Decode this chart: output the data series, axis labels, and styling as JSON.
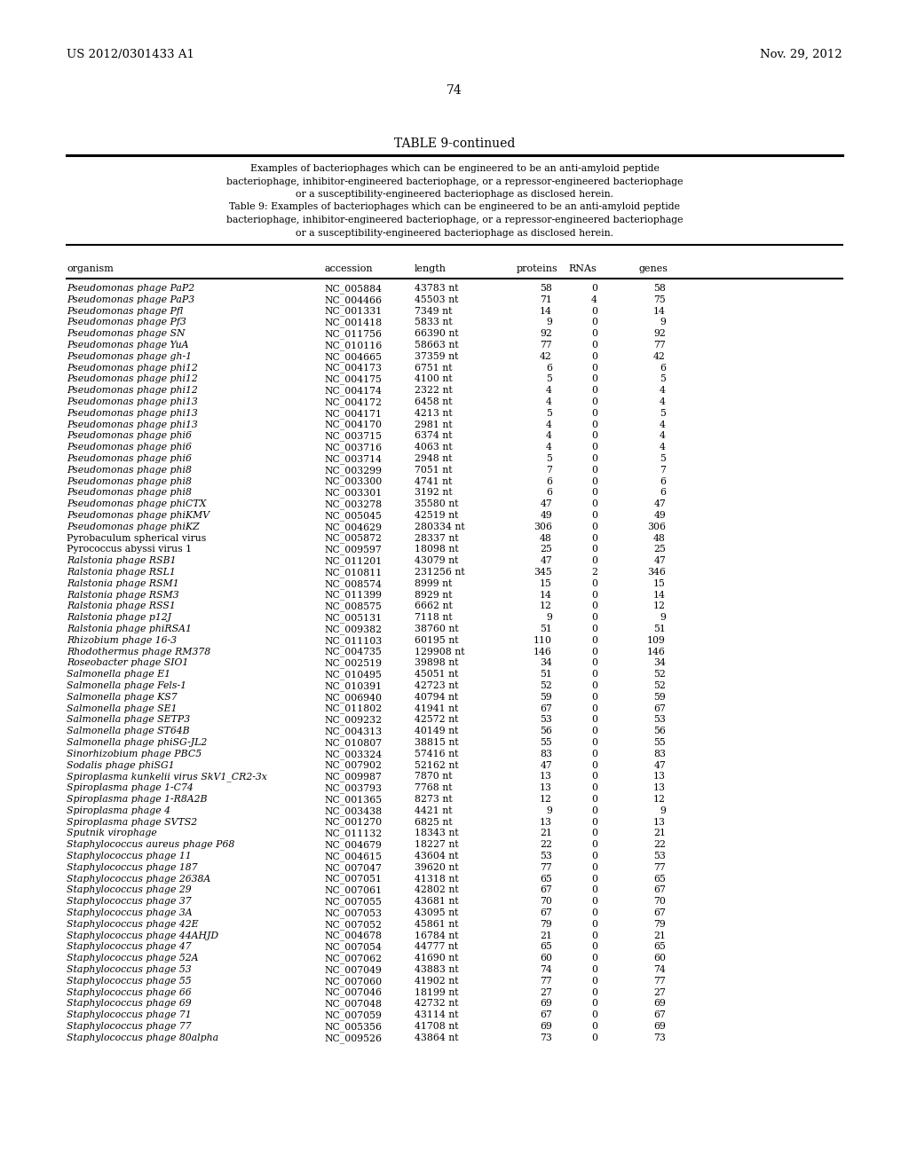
{
  "header_left": "US 2012/0301433 A1",
  "header_right": "Nov. 29, 2012",
  "page_number": "74",
  "table_title": "TABLE 9-continued",
  "caption_lines": [
    "Examples of bacteriophages which can be engineered to be an anti-amyloid peptide",
    "bacteriophage, inhibitor-engineered bacteriophage, or a repressor-engineered bacteriophage",
    "or a susceptibility-engineered bacteriophage as disclosed herein.",
    "Table 9: Examples of bacteriophages which can be engineered to be an anti-amyloid peptide",
    "bacteriophage, inhibitor-engineered bacteriophage, or a repressor-engineered bacteriophage",
    "or a susceptibility-engineered bacteriophage as disclosed herein."
  ],
  "col_headers": [
    "organism",
    "accession",
    "length",
    "proteins",
    "RNAs",
    "genes"
  ],
  "rows": [
    [
      "Pseudomonas phage PaP2",
      "NC_005884",
      "43783 nt",
      "58",
      "0",
      "58"
    ],
    [
      "Pseudomonas phage PaP3",
      "NC_004466",
      "45503 nt",
      "71",
      "4",
      "75"
    ],
    [
      "Pseudomonas phage Pfl",
      "NC_001331",
      "7349 nt",
      "14",
      "0",
      "14"
    ],
    [
      "Pseudomonas phage Pf3",
      "NC_001418",
      "5833 nt",
      "9",
      "0",
      "9"
    ],
    [
      "Pseudomonas phage SN",
      "NC_011756",
      "66390 nt",
      "92",
      "0",
      "92"
    ],
    [
      "Pseudomonas phage YuA",
      "NC_010116",
      "58663 nt",
      "77",
      "0",
      "77"
    ],
    [
      "Pseudomonas phage gh-1",
      "NC_004665",
      "37359 nt",
      "42",
      "0",
      "42"
    ],
    [
      "Pseudomonas phage phi12",
      "NC_004173",
      "6751 nt",
      "6",
      "0",
      "6"
    ],
    [
      "Pseudomonas phage phi12",
      "NC_004175",
      "4100 nt",
      "5",
      "0",
      "5"
    ],
    [
      "Pseudomonas phage phi12",
      "NC_004174",
      "2322 nt",
      "4",
      "0",
      "4"
    ],
    [
      "Pseudomonas phage phi13",
      "NC_004172",
      "6458 nt",
      "4",
      "0",
      "4"
    ],
    [
      "Pseudomonas phage phi13",
      "NC_004171",
      "4213 nt",
      "5",
      "0",
      "5"
    ],
    [
      "Pseudomonas phage phi13",
      "NC_004170",
      "2981 nt",
      "4",
      "0",
      "4"
    ],
    [
      "Pseudomonas phage phi6",
      "NC_003715",
      "6374 nt",
      "4",
      "0",
      "4"
    ],
    [
      "Pseudomonas phage phi6",
      "NC_003716",
      "4063 nt",
      "4",
      "0",
      "4"
    ],
    [
      "Pseudomonas phage phi6",
      "NC_003714",
      "2948 nt",
      "5",
      "0",
      "5"
    ],
    [
      "Pseudomonas phage phi8",
      "NC_003299",
      "7051 nt",
      "7",
      "0",
      "7"
    ],
    [
      "Pseudomonas phage phi8",
      "NC_003300",
      "4741 nt",
      "6",
      "0",
      "6"
    ],
    [
      "Pseudomonas phage phi8",
      "NC_003301",
      "3192 nt",
      "6",
      "0",
      "6"
    ],
    [
      "Pseudomonas phage phiCTX",
      "NC_003278",
      "35580 nt",
      "47",
      "0",
      "47"
    ],
    [
      "Pseudomonas phage phiKMV",
      "NC_005045",
      "42519 nt",
      "49",
      "0",
      "49"
    ],
    [
      "Pseudomonas phage phiKZ",
      "NC_004629",
      "280334 nt",
      "306",
      "0",
      "306"
    ],
    [
      "Pyrobaculum spherical virus",
      "NC_005872",
      "28337 nt",
      "48",
      "0",
      "48"
    ],
    [
      "Pyrococcus abyssi virus 1",
      "NC_009597",
      "18098 nt",
      "25",
      "0",
      "25"
    ],
    [
      "Ralstonia phage RSB1",
      "NC_011201",
      "43079 nt",
      "47",
      "0",
      "47"
    ],
    [
      "Ralstonia phage RSL1",
      "NC_010811",
      "231256 nt",
      "345",
      "2",
      "346"
    ],
    [
      "Ralstonia phage RSM1",
      "NC_008574",
      "8999 nt",
      "15",
      "0",
      "15"
    ],
    [
      "Ralstonia phage RSM3",
      "NC_011399",
      "8929 nt",
      "14",
      "0",
      "14"
    ],
    [
      "Ralstonia phage RSS1",
      "NC_008575",
      "6662 nt",
      "12",
      "0",
      "12"
    ],
    [
      "Ralstonia phage p12J",
      "NC_005131",
      "7118 nt",
      "9",
      "0",
      "9"
    ],
    [
      "Ralstonia phage phiRSA1",
      "NC_009382",
      "38760 nt",
      "51",
      "0",
      "51"
    ],
    [
      "Rhizobium phage 16-3",
      "NC_011103",
      "60195 nt",
      "110",
      "0",
      "109"
    ],
    [
      "Rhodothermus phage RM378",
      "NC_004735",
      "129908 nt",
      "146",
      "0",
      "146"
    ],
    [
      "Roseobacter phage SIO1",
      "NC_002519",
      "39898 nt",
      "34",
      "0",
      "34"
    ],
    [
      "Salmonella phage E1",
      "NC_010495",
      "45051 nt",
      "51",
      "0",
      "52"
    ],
    [
      "Salmonella phage Fels-1",
      "NC_010391",
      "42723 nt",
      "52",
      "0",
      "52"
    ],
    [
      "Salmonella phage KS7",
      "NC_006940",
      "40794 nt",
      "59",
      "0",
      "59"
    ],
    [
      "Salmonella phage SE1",
      "NC_011802",
      "41941 nt",
      "67",
      "0",
      "67"
    ],
    [
      "Salmonella phage SETP3",
      "NC_009232",
      "42572 nt",
      "53",
      "0",
      "53"
    ],
    [
      "Salmonella phage ST64B",
      "NC_004313",
      "40149 nt",
      "56",
      "0",
      "56"
    ],
    [
      "Salmonella phage phiSG-JL2",
      "NC_010807",
      "38815 nt",
      "55",
      "0",
      "55"
    ],
    [
      "Sinorhizobium phage PBC5",
      "NC_003324",
      "57416 nt",
      "83",
      "0",
      "83"
    ],
    [
      "Sodalis phage phiSG1",
      "NC_007902",
      "52162 nt",
      "47",
      "0",
      "47"
    ],
    [
      "Spiroplasma kunkelii virus SkV1_CR2-3x",
      "NC_009987",
      "7870 nt",
      "13",
      "0",
      "13"
    ],
    [
      "Spiroplasma phage 1-C74",
      "NC_003793",
      "7768 nt",
      "13",
      "0",
      "13"
    ],
    [
      "Spiroplasma phage 1-R8A2B",
      "NC_001365",
      "8273 nt",
      "12",
      "0",
      "12"
    ],
    [
      "Spiroplasma phage 4",
      "NC_003438",
      "4421 nt",
      "9",
      "0",
      "9"
    ],
    [
      "Spiroplasma phage SVTS2",
      "NC_001270",
      "6825 nt",
      "13",
      "0",
      "13"
    ],
    [
      "Sputnik virophage",
      "NC_011132",
      "18343 nt",
      "21",
      "0",
      "21"
    ],
    [
      "Staphylococcus aureus phage P68",
      "NC_004679",
      "18227 nt",
      "22",
      "0",
      "22"
    ],
    [
      "Staphylococcus phage 11",
      "NC_004615",
      "43604 nt",
      "53",
      "0",
      "53"
    ],
    [
      "Staphylococcus phage 187",
      "NC_007047",
      "39620 nt",
      "77",
      "0",
      "77"
    ],
    [
      "Staphylococcus phage 2638A",
      "NC_007051",
      "41318 nt",
      "65",
      "0",
      "65"
    ],
    [
      "Staphylococcus phage 29",
      "NC_007061",
      "42802 nt",
      "67",
      "0",
      "67"
    ],
    [
      "Staphylococcus phage 37",
      "NC_007055",
      "43681 nt",
      "70",
      "0",
      "70"
    ],
    [
      "Staphylococcus phage 3A",
      "NC_007053",
      "43095 nt",
      "67",
      "0",
      "67"
    ],
    [
      "Staphylococcus phage 42E",
      "NC_007052",
      "45861 nt",
      "79",
      "0",
      "79"
    ],
    [
      "Staphylococcus phage 44AHJD",
      "NC_004678",
      "16784 nt",
      "21",
      "0",
      "21"
    ],
    [
      "Staphylococcus phage 47",
      "NC_007054",
      "44777 nt",
      "65",
      "0",
      "65"
    ],
    [
      "Staphylococcus phage 52A",
      "NC_007062",
      "41690 nt",
      "60",
      "0",
      "60"
    ],
    [
      "Staphylococcus phage 53",
      "NC_007049",
      "43883 nt",
      "74",
      "0",
      "74"
    ],
    [
      "Staphylococcus phage 55",
      "NC_007060",
      "41902 nt",
      "77",
      "0",
      "77"
    ],
    [
      "Staphylococcus phage 66",
      "NC_007046",
      "18199 nt",
      "27",
      "0",
      "27"
    ],
    [
      "Staphylococcus phage 69",
      "NC_007048",
      "42732 nt",
      "69",
      "0",
      "69"
    ],
    [
      "Staphylococcus phage 71",
      "NC_007059",
      "43114 nt",
      "67",
      "0",
      "67"
    ],
    [
      "Staphylococcus phage 77",
      "NC_005356",
      "41708 nt",
      "69",
      "0",
      "69"
    ],
    [
      "Staphylococcus phage 80alpha",
      "NC_009526",
      "43864 nt",
      "73",
      "0",
      "73"
    ]
  ],
  "italic_organisms": [
    "Pseudomonas",
    "Ralstonia",
    "Rhizobium",
    "Rhodothermus",
    "Roseobacter",
    "Salmonella",
    "Sinorhizobium",
    "Sodalis",
    "Spiroplasma",
    "Sputnik",
    "Staphylococcus"
  ],
  "non_italic_organisms": [
    "Pyrobaculum",
    "Pyrococcus"
  ]
}
